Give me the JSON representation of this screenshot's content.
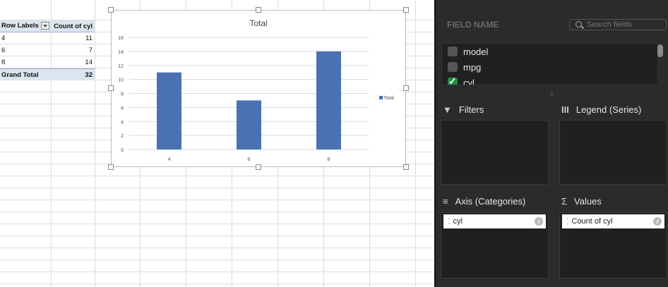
{
  "pivot": {
    "header": [
      "Row Labels",
      "Count of cyl"
    ],
    "rows": [
      [
        "4",
        "11"
      ],
      [
        "6",
        "7"
      ],
      [
        "8",
        "14"
      ]
    ],
    "total": [
      "Grand Total",
      "32"
    ]
  },
  "chart_data": {
    "type": "bar",
    "title": "Total",
    "categories": [
      "4",
      "6",
      "8"
    ],
    "series": [
      {
        "name": "Total",
        "values": [
          11,
          7,
          14
        ]
      }
    ],
    "ylim": [
      0,
      16
    ],
    "yticks": [
      0,
      2,
      4,
      6,
      8,
      10,
      12,
      14,
      16
    ],
    "grid": true,
    "legend": "right",
    "color": "#4a72b2"
  },
  "panel": {
    "field_name": "FIELD NAME",
    "search_placeholder": "Search fields",
    "fields": [
      {
        "label": "model",
        "checked": false
      },
      {
        "label": "mpg",
        "checked": false
      },
      {
        "label": "cyl",
        "checked": true
      }
    ],
    "filters": "Filters",
    "legend": "Legend (Series)",
    "axis": "Axis (Categories)",
    "values": "Values",
    "axis_items": [
      "cyl"
    ],
    "values_items": [
      "Count of cyl"
    ]
  }
}
